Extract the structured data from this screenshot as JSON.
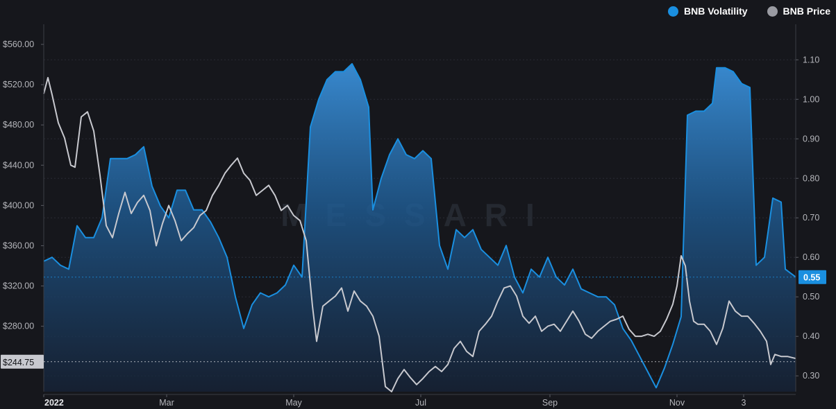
{
  "legend": {
    "volatility_label": "BNB Volatility",
    "price_label": "BNB Price"
  },
  "watermark": "MESSARI",
  "colors": {
    "background": "#16171c",
    "volatility": "#1a8fe0",
    "price": "#c8c9cf",
    "grid": "#2a2c34",
    "axis_text": "#b5b6bb",
    "current_price_badge": "#c8c9cf",
    "current_vol_badge": "#1a8fe0"
  },
  "chart_data": {
    "type": "area",
    "x_axis": {
      "ticks": [
        "2022",
        "Mar",
        "May",
        "Jul",
        "Sep",
        "Nov",
        "3"
      ],
      "tick_dates": [
        "2022-01-01",
        "2022-03-01",
        "2022-05-01",
        "2022-07-01",
        "2022-09-01",
        "2022-11-01",
        "2022-12-03"
      ],
      "range": [
        "2022-01-01",
        "2022-12-28"
      ]
    },
    "y_left": {
      "label": "",
      "ticks": [
        "$560.00",
        "$520.00",
        "$480.00",
        "$440.00",
        "$400.00",
        "$360.00",
        "$320.00",
        "$280.00"
      ],
      "tick_values": [
        560,
        520,
        480,
        440,
        400,
        360,
        320,
        280
      ],
      "range": [
        215,
        580
      ],
      "current_value_label": "$244.75",
      "current_value": 244.75
    },
    "y_right": {
      "label": "",
      "ticks": [
        "1.10",
        "1.00",
        "0.90",
        "0.80",
        "0.70",
        "0.60",
        "0.50",
        "0.40",
        "0.30"
      ],
      "tick_values": [
        1.1,
        1.0,
        0.9,
        0.8,
        0.7,
        0.6,
        0.5,
        0.4,
        0.3
      ],
      "range": [
        0.26,
        1.19
      ],
      "current_value_label": "0.55",
      "current_value": 0.55
    },
    "grid": true,
    "legend_position": "top-right",
    "series": [
      {
        "name": "BNB Volatility",
        "axis": "right",
        "type": "area",
        "points": [
          [
            "2022-01-01",
            0.59
          ],
          [
            "2022-01-05",
            0.6
          ],
          [
            "2022-01-09",
            0.58
          ],
          [
            "2022-01-13",
            0.57
          ],
          [
            "2022-01-17",
            0.68
          ],
          [
            "2022-01-21",
            0.65
          ],
          [
            "2022-01-25",
            0.65
          ],
          [
            "2022-01-29",
            0.7
          ],
          [
            "2022-02-02",
            0.85
          ],
          [
            "2022-02-06",
            0.85
          ],
          [
            "2022-02-10",
            0.85
          ],
          [
            "2022-02-14",
            0.86
          ],
          [
            "2022-02-18",
            0.88
          ],
          [
            "2022-02-22",
            0.78
          ],
          [
            "2022-02-26",
            0.73
          ],
          [
            "2022-03-02",
            0.7
          ],
          [
            "2022-03-06",
            0.77
          ],
          [
            "2022-03-10",
            0.77
          ],
          [
            "2022-03-14",
            0.72
          ],
          [
            "2022-03-18",
            0.72
          ],
          [
            "2022-03-22",
            0.69
          ],
          [
            "2022-03-26",
            0.65
          ],
          [
            "2022-03-30",
            0.6
          ],
          [
            "2022-04-03",
            0.5
          ],
          [
            "2022-04-07",
            0.42
          ],
          [
            "2022-04-11",
            0.48
          ],
          [
            "2022-04-15",
            0.51
          ],
          [
            "2022-04-19",
            0.5
          ],
          [
            "2022-04-23",
            0.51
          ],
          [
            "2022-04-27",
            0.53
          ],
          [
            "2022-05-01",
            0.58
          ],
          [
            "2022-05-05",
            0.55
          ],
          [
            "2022-05-09",
            0.93
          ],
          [
            "2022-05-13",
            1.0
          ],
          [
            "2022-05-17",
            1.05
          ],
          [
            "2022-05-21",
            1.07
          ],
          [
            "2022-05-25",
            1.07
          ],
          [
            "2022-05-29",
            1.09
          ],
          [
            "2022-06-02",
            1.05
          ],
          [
            "2022-06-06",
            0.98
          ],
          [
            "2022-06-08",
            0.72
          ],
          [
            "2022-06-12",
            0.8
          ],
          [
            "2022-06-16",
            0.86
          ],
          [
            "2022-06-20",
            0.9
          ],
          [
            "2022-06-24",
            0.86
          ],
          [
            "2022-06-28",
            0.85
          ],
          [
            "2022-07-02",
            0.87
          ],
          [
            "2022-07-06",
            0.85
          ],
          [
            "2022-07-10",
            0.63
          ],
          [
            "2022-07-14",
            0.57
          ],
          [
            "2022-07-18",
            0.67
          ],
          [
            "2022-07-22",
            0.65
          ],
          [
            "2022-07-26",
            0.67
          ],
          [
            "2022-07-30",
            0.62
          ],
          [
            "2022-08-03",
            0.6
          ],
          [
            "2022-08-07",
            0.58
          ],
          [
            "2022-08-11",
            0.63
          ],
          [
            "2022-08-15",
            0.55
          ],
          [
            "2022-08-19",
            0.51
          ],
          [
            "2022-08-23",
            0.57
          ],
          [
            "2022-08-27",
            0.55
          ],
          [
            "2022-08-31",
            0.6
          ],
          [
            "2022-09-04",
            0.55
          ],
          [
            "2022-09-08",
            0.53
          ],
          [
            "2022-09-12",
            0.57
          ],
          [
            "2022-09-16",
            0.52
          ],
          [
            "2022-09-20",
            0.51
          ],
          [
            "2022-09-24",
            0.5
          ],
          [
            "2022-09-28",
            0.5
          ],
          [
            "2022-10-02",
            0.48
          ],
          [
            "2022-10-06",
            0.42
          ],
          [
            "2022-10-10",
            0.39
          ],
          [
            "2022-10-14",
            0.35
          ],
          [
            "2022-10-18",
            0.31
          ],
          [
            "2022-10-22",
            0.27
          ],
          [
            "2022-10-26",
            0.32
          ],
          [
            "2022-10-30",
            0.38
          ],
          [
            "2022-11-03",
            0.45
          ],
          [
            "2022-11-06",
            0.96
          ],
          [
            "2022-11-10",
            0.97
          ],
          [
            "2022-11-14",
            0.97
          ],
          [
            "2022-11-18",
            0.99
          ],
          [
            "2022-11-20",
            1.08
          ],
          [
            "2022-11-24",
            1.08
          ],
          [
            "2022-11-28",
            1.07
          ],
          [
            "2022-12-02",
            1.04
          ],
          [
            "2022-12-06",
            1.03
          ],
          [
            "2022-12-09",
            0.58
          ],
          [
            "2022-12-13",
            0.6
          ],
          [
            "2022-12-17",
            0.75
          ],
          [
            "2022-12-21",
            0.74
          ],
          [
            "2022-12-23",
            0.57
          ],
          [
            "2022-12-28",
            0.55
          ]
        ]
      },
      {
        "name": "BNB Price",
        "axis": "left",
        "type": "line",
        "points": [
          [
            "2022-01-01",
            511
          ],
          [
            "2022-01-03",
            527
          ],
          [
            "2022-01-05",
            510
          ],
          [
            "2022-01-08",
            482
          ],
          [
            "2022-01-11",
            467
          ],
          [
            "2022-01-14",
            440
          ],
          [
            "2022-01-16",
            438
          ],
          [
            "2022-01-19",
            488
          ],
          [
            "2022-01-22",
            493
          ],
          [
            "2022-01-25",
            474
          ],
          [
            "2022-01-28",
            430
          ],
          [
            "2022-01-31",
            380
          ],
          [
            "2022-02-03",
            368
          ],
          [
            "2022-02-06",
            392
          ],
          [
            "2022-02-09",
            413
          ],
          [
            "2022-02-12",
            392
          ],
          [
            "2022-02-15",
            403
          ],
          [
            "2022-02-18",
            410
          ],
          [
            "2022-02-21",
            395
          ],
          [
            "2022-02-24",
            360
          ],
          [
            "2022-02-27",
            382
          ],
          [
            "2022-03-02",
            400
          ],
          [
            "2022-03-05",
            385
          ],
          [
            "2022-03-08",
            365
          ],
          [
            "2022-03-11",
            372
          ],
          [
            "2022-03-14",
            378
          ],
          [
            "2022-03-17",
            390
          ],
          [
            "2022-03-20",
            395
          ],
          [
            "2022-03-23",
            410
          ],
          [
            "2022-03-26",
            420
          ],
          [
            "2022-03-29",
            432
          ],
          [
            "2022-04-01",
            440
          ],
          [
            "2022-04-04",
            447
          ],
          [
            "2022-04-07",
            432
          ],
          [
            "2022-04-10",
            425
          ],
          [
            "2022-04-13",
            410
          ],
          [
            "2022-04-16",
            415
          ],
          [
            "2022-04-19",
            420
          ],
          [
            "2022-04-22",
            410
          ],
          [
            "2022-04-25",
            395
          ],
          [
            "2022-04-28",
            400
          ],
          [
            "2022-05-01",
            390
          ],
          [
            "2022-05-04",
            385
          ],
          [
            "2022-05-07",
            365
          ],
          [
            "2022-05-10",
            300
          ],
          [
            "2022-05-12",
            265
          ],
          [
            "2022-05-15",
            300
          ],
          [
            "2022-05-18",
            305
          ],
          [
            "2022-05-21",
            310
          ],
          [
            "2022-05-24",
            318
          ],
          [
            "2022-05-27",
            295
          ],
          [
            "2022-05-30",
            315
          ],
          [
            "2022-06-02",
            305
          ],
          [
            "2022-06-05",
            300
          ],
          [
            "2022-06-08",
            290
          ],
          [
            "2022-06-11",
            270
          ],
          [
            "2022-06-14",
            220
          ],
          [
            "2022-06-17",
            215
          ],
          [
            "2022-06-20",
            228
          ],
          [
            "2022-06-23",
            237
          ],
          [
            "2022-06-26",
            229
          ],
          [
            "2022-06-29",
            222
          ],
          [
            "2022-07-02",
            228
          ],
          [
            "2022-07-05",
            235
          ],
          [
            "2022-07-08",
            240
          ],
          [
            "2022-07-11",
            235
          ],
          [
            "2022-07-14",
            242
          ],
          [
            "2022-07-17",
            258
          ],
          [
            "2022-07-20",
            265
          ],
          [
            "2022-07-23",
            255
          ],
          [
            "2022-07-26",
            250
          ],
          [
            "2022-07-29",
            275
          ],
          [
            "2022-08-01",
            282
          ],
          [
            "2022-08-04",
            290
          ],
          [
            "2022-08-07",
            305
          ],
          [
            "2022-08-10",
            318
          ],
          [
            "2022-08-13",
            320
          ],
          [
            "2022-08-16",
            310
          ],
          [
            "2022-08-19",
            290
          ],
          [
            "2022-08-22",
            283
          ],
          [
            "2022-08-25",
            290
          ],
          [
            "2022-08-28",
            275
          ],
          [
            "2022-08-31",
            280
          ],
          [
            "2022-09-03",
            282
          ],
          [
            "2022-09-06",
            275
          ],
          [
            "2022-09-09",
            285
          ],
          [
            "2022-09-12",
            295
          ],
          [
            "2022-09-15",
            285
          ],
          [
            "2022-09-18",
            272
          ],
          [
            "2022-09-21",
            268
          ],
          [
            "2022-09-24",
            275
          ],
          [
            "2022-09-27",
            280
          ],
          [
            "2022-09-30",
            285
          ],
          [
            "2022-10-03",
            287
          ],
          [
            "2022-10-06",
            290
          ],
          [
            "2022-10-09",
            277
          ],
          [
            "2022-10-12",
            270
          ],
          [
            "2022-10-15",
            270
          ],
          [
            "2022-10-18",
            272
          ],
          [
            "2022-10-21",
            270
          ],
          [
            "2022-10-24",
            275
          ],
          [
            "2022-10-27",
            287
          ],
          [
            "2022-10-30",
            302
          ],
          [
            "2022-11-01",
            320
          ],
          [
            "2022-11-03",
            350
          ],
          [
            "2022-11-05",
            340
          ],
          [
            "2022-11-07",
            305
          ],
          [
            "2022-11-09",
            285
          ],
          [
            "2022-11-11",
            282
          ],
          [
            "2022-11-14",
            282
          ],
          [
            "2022-11-17",
            275
          ],
          [
            "2022-11-20",
            262
          ],
          [
            "2022-11-23",
            278
          ],
          [
            "2022-11-26",
            305
          ],
          [
            "2022-11-29",
            295
          ],
          [
            "2022-12-02",
            290
          ],
          [
            "2022-12-05",
            290
          ],
          [
            "2022-12-08",
            283
          ],
          [
            "2022-12-11",
            275
          ],
          [
            "2022-12-14",
            265
          ],
          [
            "2022-12-16",
            242
          ],
          [
            "2022-12-18",
            252
          ],
          [
            "2022-12-21",
            250
          ],
          [
            "2022-12-24",
            250
          ],
          [
            "2022-12-28",
            248
          ]
        ]
      }
    ]
  }
}
